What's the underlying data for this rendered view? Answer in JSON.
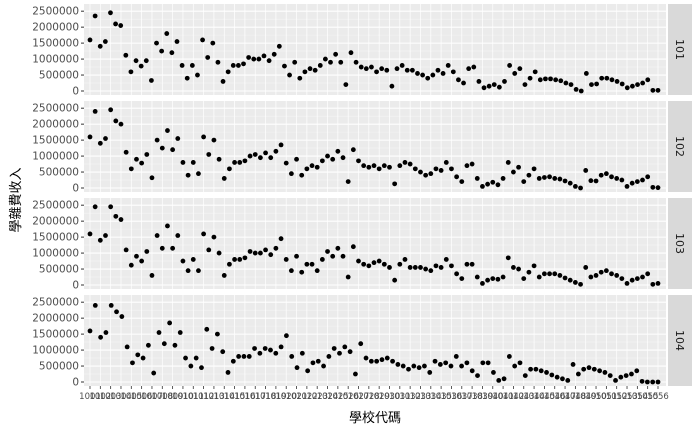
{
  "chart_data": {
    "type": "scatter",
    "xlabel": "學校代碼",
    "ylabel": "學雜費收入",
    "y_ticks": [
      0,
      500000,
      1000000,
      1500000,
      2000000,
      2500000
    ],
    "y_tick_labels": [
      "0",
      "500000",
      "1000000",
      "1500000",
      "2000000",
      "2500000"
    ],
    "ylim": [
      0,
      2600000
    ],
    "x_tick_labels_note_overlapping": "x tick labels are dense and overlapping school codes (1001...1056)",
    "x_tick_labels": [
      "1001",
      "1002",
      "1003",
      "1004",
      "1005",
      "1006",
      "1007",
      "1008",
      "1009",
      "1010",
      "1011",
      "1012",
      "1013",
      "1014",
      "1015",
      "1016",
      "1017",
      "1018",
      "1019",
      "1020",
      "1021",
      "1022",
      "1023",
      "1024",
      "1025",
      "1026",
      "1027",
      "1028",
      "1029",
      "1030",
      "1031",
      "1032",
      "1033",
      "1034",
      "1035",
      "1036",
      "1037",
      "1038",
      "1039",
      "1040",
      "1041",
      "1042",
      "1043",
      "1044",
      "1045",
      "1046",
      "1047",
      "1048",
      "1049",
      "1050",
      "1051",
      "1052",
      "1053",
      "1054",
      "1055",
      "1056"
    ],
    "grid": true,
    "background": "#ebebeb",
    "strip_background": "#d9d9d9",
    "point_color": "#000000",
    "facets": [
      {
        "label": "101",
        "values": [
          1600000,
          2350000,
          1400000,
          1550000,
          2450000,
          2100000,
          2050000,
          1120000,
          600000,
          950000,
          780000,
          950000,
          330000,
          1500000,
          1250000,
          1800000,
          1200000,
          1550000,
          800000,
          400000,
          800000,
          500000,
          1600000,
          1050000,
          1500000,
          900000,
          300000,
          600000,
          800000,
          800000,
          850000,
          1050000,
          1000000,
          1000000,
          1100000,
          950000,
          1150000,
          1400000,
          780000,
          500000,
          900000,
          400000,
          600000,
          700000,
          650000,
          800000,
          1000000,
          900000,
          1150000,
          900000,
          200000,
          1200000,
          900000,
          750000,
          700000,
          750000,
          600000,
          700000,
          650000,
          150000,
          700000,
          800000,
          650000,
          650000,
          550000,
          500000,
          400000,
          500000,
          650000,
          550000,
          800000,
          600000,
          350000,
          250000,
          700000,
          750000,
          300000,
          100000,
          150000,
          200000,
          120000,
          300000,
          800000,
          550000,
          700000,
          200000,
          400000,
          600000,
          350000,
          380000,
          380000,
          350000,
          320000,
          250000,
          200000,
          50000,
          0,
          550000,
          200000,
          220000,
          400000,
          400000,
          350000,
          300000,
          220000,
          100000,
          150000,
          200000,
          250000,
          350000,
          20000,
          20000
        ]
      },
      {
        "label": "102",
        "values": [
          1600000,
          2400000,
          1400000,
          1550000,
          2450000,
          2100000,
          2000000,
          1120000,
          600000,
          900000,
          780000,
          1050000,
          320000,
          1500000,
          1250000,
          1800000,
          1200000,
          1550000,
          800000,
          400000,
          800000,
          450000,
          1600000,
          1050000,
          1500000,
          900000,
          300000,
          600000,
          800000,
          800000,
          850000,
          1000000,
          1050000,
          950000,
          1100000,
          950000,
          1150000,
          1350000,
          780000,
          450000,
          900000,
          400000,
          600000,
          700000,
          650000,
          850000,
          1000000,
          900000,
          1150000,
          950000,
          200000,
          1200000,
          850000,
          700000,
          650000,
          700000,
          600000,
          700000,
          650000,
          130000,
          700000,
          800000,
          750000,
          600000,
          500000,
          400000,
          450000,
          600000,
          550000,
          800000,
          600000,
          350000,
          200000,
          700000,
          750000,
          300000,
          50000,
          120000,
          180000,
          100000,
          300000,
          800000,
          500000,
          650000,
          200000,
          400000,
          600000,
          300000,
          330000,
          350000,
          300000,
          280000,
          220000,
          150000,
          50000,
          0,
          550000,
          230000,
          220000,
          400000,
          450000,
          350000,
          300000,
          250000,
          50000,
          150000,
          200000,
          250000,
          350000,
          20000,
          10000
        ]
      },
      {
        "label": "103",
        "values": [
          1600000,
          2450000,
          1400000,
          1550000,
          2450000,
          2150000,
          2050000,
          1100000,
          620000,
          900000,
          750000,
          1050000,
          300000,
          1550000,
          1150000,
          1850000,
          1150000,
          1550000,
          750000,
          450000,
          800000,
          450000,
          1600000,
          1100000,
          1500000,
          1000000,
          300000,
          650000,
          800000,
          800000,
          850000,
          1050000,
          1000000,
          1000000,
          1100000,
          950000,
          1150000,
          1450000,
          800000,
          450000,
          900000,
          400000,
          650000,
          650000,
          450000,
          800000,
          1050000,
          900000,
          1150000,
          900000,
          250000,
          1200000,
          750000,
          650000,
          600000,
          700000,
          750000,
          650000,
          550000,
          150000,
          650000,
          800000,
          550000,
          550000,
          550000,
          500000,
          450000,
          600000,
          550000,
          800000,
          600000,
          350000,
          200000,
          650000,
          650000,
          250000,
          50000,
          150000,
          200000,
          180000,
          250000,
          850000,
          550000,
          500000,
          200000,
          400000,
          600000,
          250000,
          350000,
          350000,
          350000,
          300000,
          220000,
          150000,
          80000,
          20000,
          550000,
          250000,
          300000,
          400000,
          450000,
          350000,
          300000,
          200000,
          50000,
          150000,
          200000,
          250000,
          350000,
          20000,
          50000
        ]
      },
      {
        "label": "104",
        "values": [
          1600000,
          2400000,
          1400000,
          1550000,
          2400000,
          2200000,
          2050000,
          1100000,
          600000,
          850000,
          750000,
          1150000,
          280000,
          1550000,
          1200000,
          1850000,
          1150000,
          1550000,
          750000,
          500000,
          750000,
          450000,
          1650000,
          1050000,
          1500000,
          950000,
          300000,
          650000,
          800000,
          800000,
          800000,
          1050000,
          900000,
          1050000,
          1000000,
          900000,
          1100000,
          1450000,
          800000,
          450000,
          900000,
          350000,
          600000,
          650000,
          500000,
          800000,
          1050000,
          900000,
          1100000,
          950000,
          250000,
          1200000,
          750000,
          650000,
          650000,
          700000,
          750000,
          650000,
          550000,
          500000,
          400000,
          500000,
          450000,
          500000,
          300000,
          650000,
          550000,
          600000,
          500000,
          800000,
          500000,
          600000,
          350000,
          200000,
          600000,
          600000,
          300000,
          50000,
          100000,
          800000,
          500000,
          600000,
          200000,
          400000,
          400000,
          350000,
          300000,
          220000,
          150000,
          100000,
          50000,
          550000,
          250000,
          400000,
          450000,
          400000,
          350000,
          300000,
          200000,
          50000,
          150000,
          200000,
          250000,
          350000,
          20000,
          0,
          0,
          0
        ]
      }
    ]
  }
}
